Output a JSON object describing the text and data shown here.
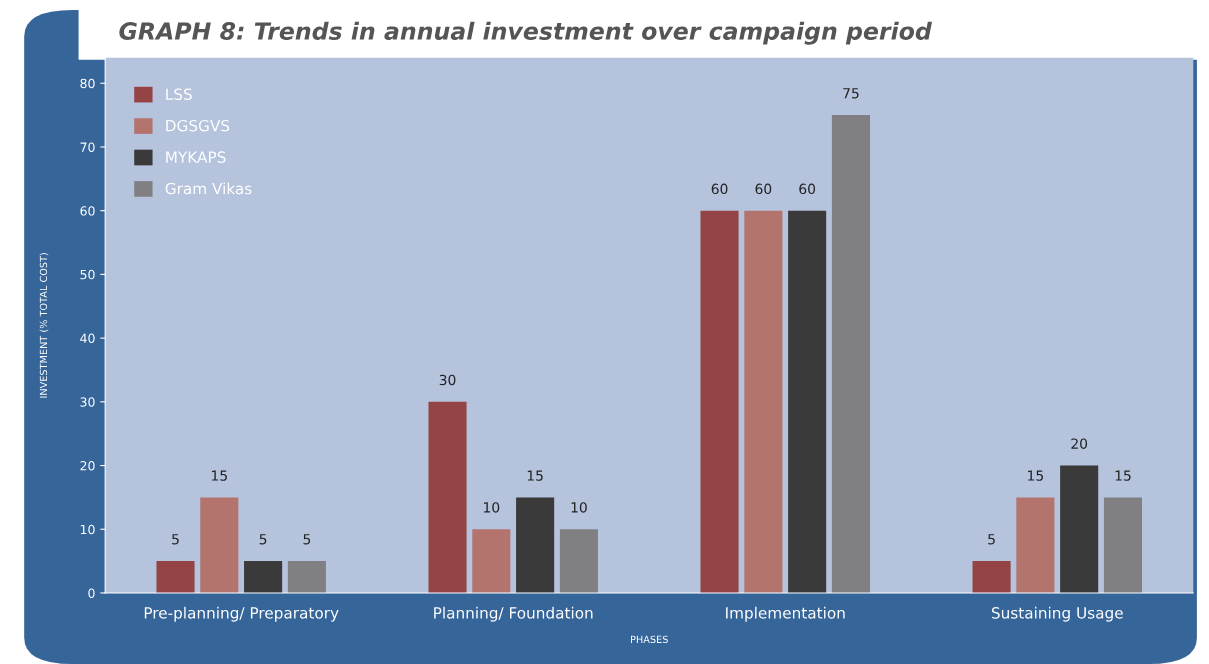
{
  "chart_data": {
    "type": "bar",
    "title": "GRAPH 8: Trends in annual investment over campaign period",
    "xlabel": "PHASES",
    "ylabel": "INVESTMENT (% TOTAL COST)",
    "categories": [
      "Pre-planning/ Preparatory",
      "Planning/ Foundation",
      "Implementation",
      "Sustaining Usage"
    ],
    "series": [
      {
        "name": "LSS",
        "color": "#954446",
        "values": [
          5,
          30,
          60,
          5
        ]
      },
      {
        "name": "DGSGVS",
        "color": "#b3746d",
        "values": [
          15,
          10,
          60,
          15
        ]
      },
      {
        "name": "MYKAPS",
        "color": "#3a3a3a",
        "values": [
          5,
          15,
          60,
          20
        ]
      },
      {
        "name": "Gram Vikas",
        "color": "#808083",
        "values": [
          5,
          10,
          75,
          15
        ]
      }
    ],
    "ylim": [
      0,
      84
    ],
    "yticks": [
      0,
      10,
      20,
      30,
      40,
      50,
      60,
      70,
      80
    ],
    "data_labels": true,
    "legend": "top left",
    "grid": false
  }
}
